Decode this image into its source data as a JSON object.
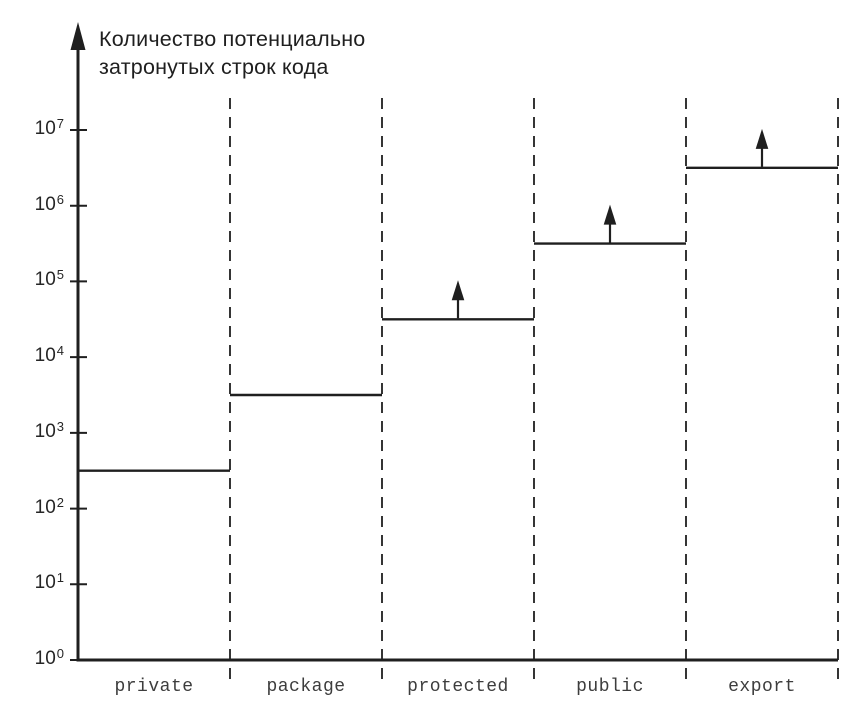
{
  "figure": {
    "background": "#ffffff",
    "ink_color": "#1f1f1f",
    "category_label_color": "#3d3d3d"
  },
  "chart_data": {
    "type": "line",
    "subtype": "step-log",
    "title": "Количество потенциально затронутых строк кода",
    "title_lines": [
      "Количество потенциально",
      "затронутых строк кода"
    ],
    "ylabel": "Количество потенциально затронутых строк кода",
    "xlabel": "",
    "yscale": "log10",
    "ylim": [
      1,
      10000000
    ],
    "ytick_base": "10",
    "ytick_exponents": [
      0,
      1,
      2,
      3,
      4,
      5,
      6,
      7
    ],
    "categories": [
      "private",
      "package",
      "protected",
      "public",
      "export"
    ],
    "values_log10": [
      2.5,
      3.5,
      4.5,
      5.5,
      6.5
    ],
    "values_approx": [
      300,
      3000,
      30000,
      300000,
      3000000
    ],
    "open_ended_above": [
      false,
      false,
      true,
      true,
      true
    ],
    "grid": "dashed vertical category separators",
    "legend": "none"
  }
}
